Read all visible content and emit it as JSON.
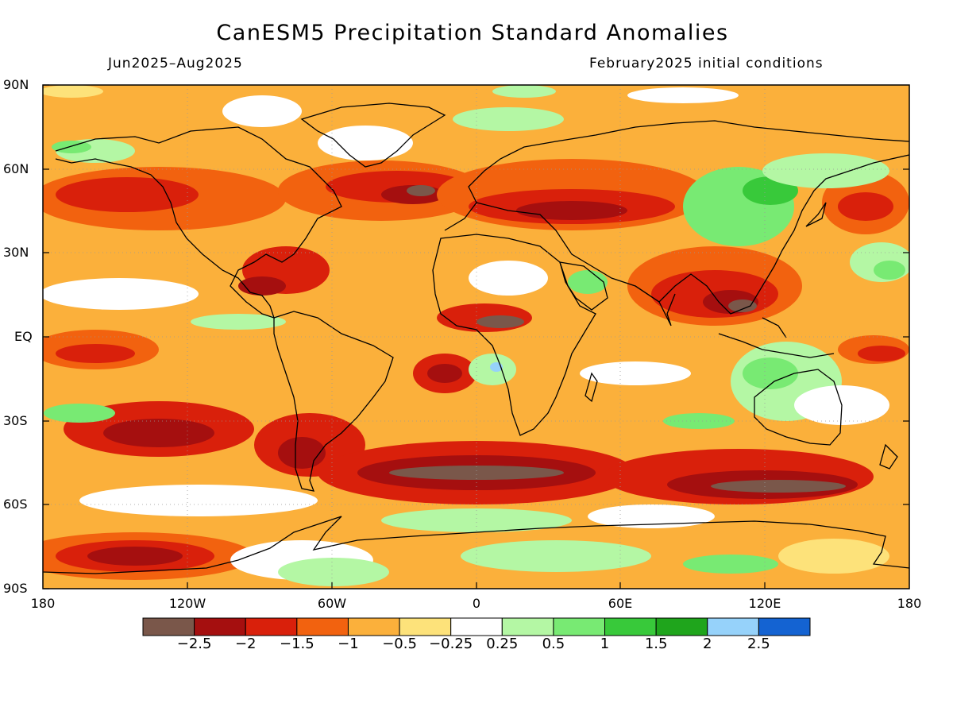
{
  "title": "CanESM5 Precipitation Standard Anomalies",
  "subtitle_left": "Jun2025–Aug2025",
  "subtitle_right": "February2025 initial conditions",
  "lat_labels": [
    "90N",
    "60N",
    "30N",
    "EQ",
    "30S",
    "60S",
    "90S"
  ],
  "lon_labels": [
    "180",
    "120W",
    "60W",
    "0",
    "60E",
    "120E",
    "180"
  ],
  "colorbar": {
    "colors": [
      "#7a574a",
      "#a50f0f",
      "#d9200b",
      "#f2620f",
      "#fbb03b",
      "#fde27a",
      "#ffffff",
      "#b4f7a4",
      "#78ea73",
      "#38c93a",
      "#1fa51c",
      "#96d2fa",
      "#1463d2"
    ],
    "labels": [
      "−2.5",
      "−2",
      "−1.5",
      "−1",
      "−0.5",
      "−0.25",
      "0.25",
      "0.5",
      "1",
      "1.5",
      "2",
      "2.5"
    ]
  },
  "field_colors": {
    "base": "#fbb03b",
    "orange": "#f2620f",
    "red": "#d9200b",
    "darkred": "#a50f0f",
    "brown": "#7a574a",
    "yellow": "#fde27a",
    "white": "#ffffff",
    "lightgreen": "#b4f7a4",
    "green": "#78ea73",
    "darkgreen": "#38c93a",
    "lightblue": "#96d2fa"
  }
}
